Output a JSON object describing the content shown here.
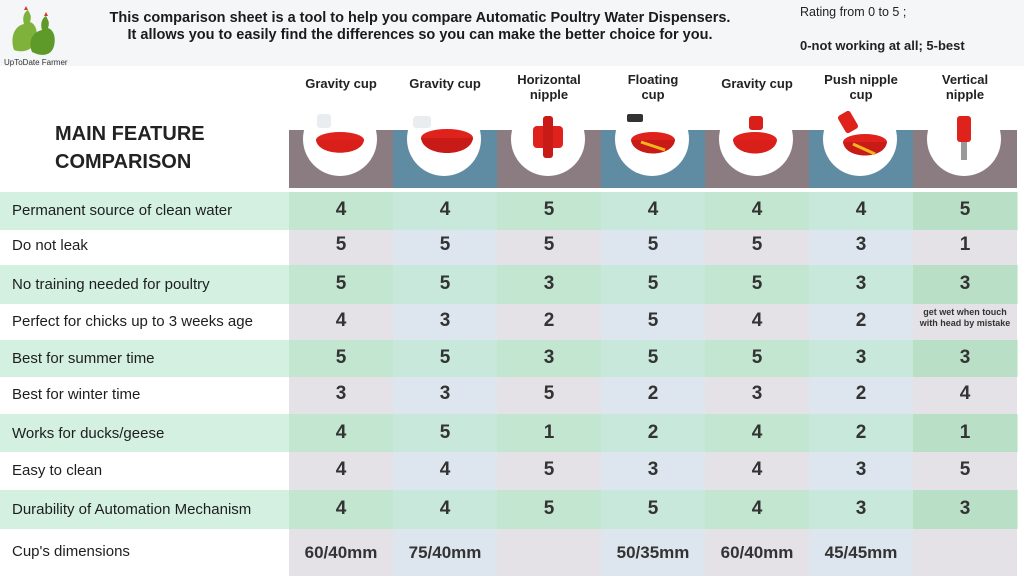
{
  "brand": "UpToDate Farmer",
  "intro": [
    "This comparison sheet is a tool to help you compare Automatic Poultry Water Dispensers.",
    "It allows you to easily find the differences so you can make the better choice for you."
  ],
  "rating": "Rating from 0 to 5 ;",
  "scale": "0-not working at all;  5-best",
  "main_title": [
    "MAIN FEATURE",
    "COMPARISON"
  ],
  "columns": [
    {
      "label": [
        "Gravity cup"
      ],
      "band": "#8b7c82"
    },
    {
      "label": [
        "Gravity cup"
      ],
      "band": "#5f8ba3"
    },
    {
      "label": [
        "Horizontal",
        "nipple"
      ],
      "band": "#8b7c82"
    },
    {
      "label": [
        "Floating",
        "cup"
      ],
      "band": "#5f8ba3"
    },
    {
      "label": [
        "Gravity cup"
      ],
      "band": "#8b7c82"
    },
    {
      "label": [
        "Push nipple",
        "cup"
      ],
      "band": "#5f8ba3"
    },
    {
      "label": [
        "Vertical",
        "nipple"
      ],
      "band": "#8b7c82"
    }
  ],
  "rows": [
    {
      "label": "Permanent source of clean water",
      "values": [
        "4",
        "4",
        "5",
        "4",
        "4",
        "4",
        "5"
      ]
    },
    {
      "label": "Do not leak",
      "values": [
        "5",
        "5",
        "5",
        "5",
        "5",
        "3",
        "1"
      ]
    },
    {
      "label": "No training needed for poultry",
      "values": [
        "5",
        "5",
        "3",
        "5",
        "5",
        "3",
        "3"
      ]
    },
    {
      "label": "Perfect for chicks up to 3 weeks age",
      "values": [
        "4",
        "3",
        "2",
        "5",
        "4",
        "2",
        "get wet when touch with head by mistake"
      ]
    },
    {
      "label": "Best for summer time",
      "values": [
        "5",
        "5",
        "3",
        "5",
        "5",
        "3",
        "3"
      ]
    },
    {
      "label": "Best for winter time",
      "values": [
        "3",
        "3",
        "5",
        "2",
        "3",
        "2",
        "4"
      ]
    },
    {
      "label": "Works for ducks/geese",
      "values": [
        "4",
        "5",
        "1",
        "2",
        "4",
        "2",
        "1"
      ]
    },
    {
      "label": "Easy to clean",
      "values": [
        "4",
        "4",
        "5",
        "3",
        "4",
        "3",
        "5"
      ]
    },
    {
      "label": "Durability of Automation Mechanism",
      "values": [
        "4",
        "4",
        "5",
        "5",
        "4",
        "3",
        "3"
      ]
    },
    {
      "label": "Cup's dimensions",
      "values": [
        "60/40mm",
        "75/40mm",
        "",
        "50/35mm",
        "60/40mm",
        "45/45mm",
        ""
      ]
    }
  ]
}
